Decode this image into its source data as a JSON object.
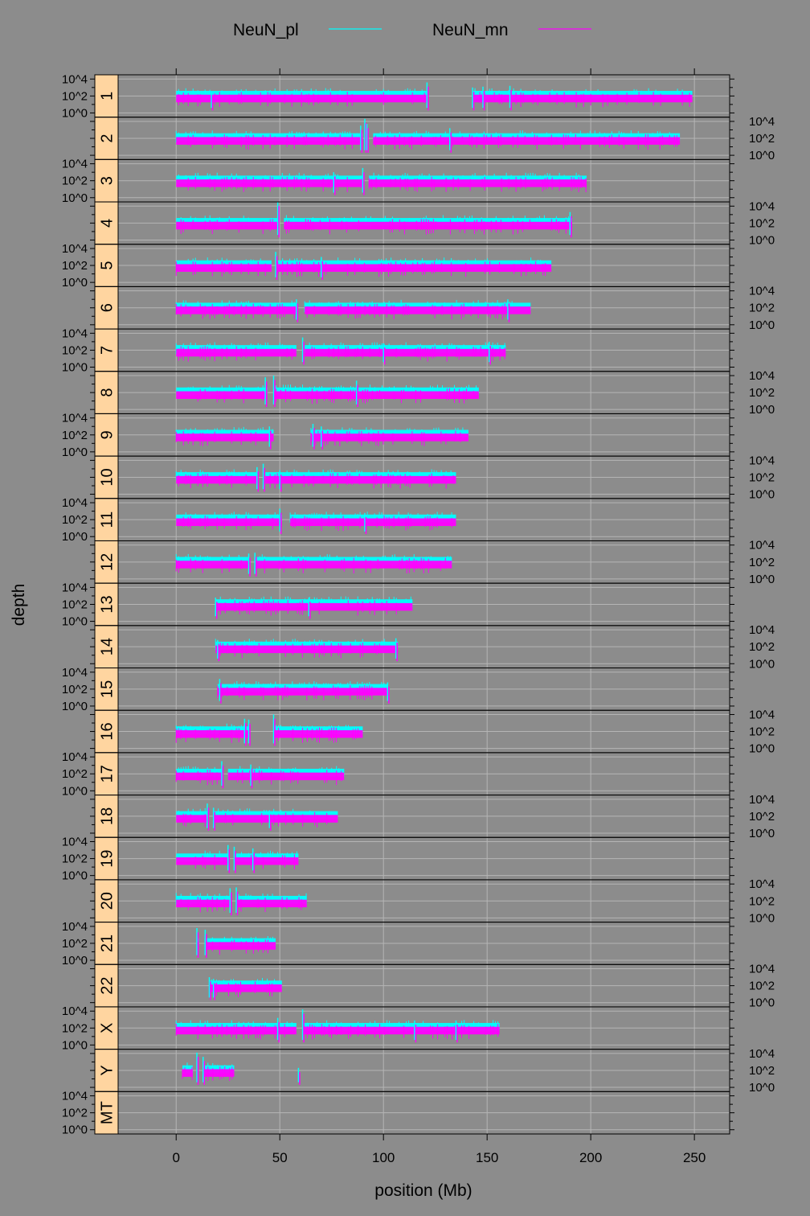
{
  "chart_data": {
    "type": "line",
    "x_label": "position (Mb)",
    "y_label": "depth",
    "x_ticks": [
      0,
      50,
      100,
      150,
      200,
      250
    ],
    "x_range": [
      -28,
      267
    ],
    "y_tick_labels": [
      "10^0",
      "10^2",
      "10^4"
    ],
    "y_ticks_log10": [
      0,
      2,
      4
    ],
    "y_range_log10": [
      -0.5,
      4.5
    ],
    "grid": true,
    "legend_position": "top",
    "series": [
      {
        "name": "NeuN_pl",
        "color": "#00ffff",
        "typical_log10_depth": 2.15
      },
      {
        "name": "NeuN_mn",
        "color": "#ff00ff",
        "typical_log10_depth": 1.7
      }
    ],
    "panels": [
      {
        "chrom": "1",
        "length": 249,
        "segments": [
          [
            0,
            121
          ],
          [
            143,
            249
          ]
        ],
        "spikes": [
          [
            17,
            2.5
          ],
          [
            121,
            3.6
          ],
          [
            143,
            3.0
          ],
          [
            148,
            3.1
          ],
          [
            161,
            3.2
          ]
        ]
      },
      {
        "chrom": "2",
        "length": 243,
        "segments": [
          [
            0,
            90
          ],
          [
            95,
            243
          ]
        ],
        "spikes": [
          [
            89,
            3.5
          ],
          [
            91,
            4.3
          ],
          [
            92,
            3.7
          ],
          [
            132,
            3.2
          ]
        ]
      },
      {
        "chrom": "3",
        "length": 198,
        "segments": [
          [
            0,
            90
          ],
          [
            93,
            198
          ]
        ],
        "spikes": [
          [
            76,
            3.0
          ],
          [
            90,
            3.5
          ]
        ]
      },
      {
        "chrom": "4",
        "length": 191,
        "segments": [
          [
            0,
            49
          ],
          [
            52,
            191
          ]
        ],
        "spikes": [
          [
            49,
            4.5
          ],
          [
            190,
            3.3
          ]
        ]
      },
      {
        "chrom": "5",
        "length": 181,
        "segments": [
          [
            0,
            46
          ],
          [
            49,
            181
          ]
        ],
        "spikes": [
          [
            48,
            3.6
          ],
          [
            70,
            3.0
          ]
        ]
      },
      {
        "chrom": "6",
        "length": 171,
        "segments": [
          [
            0,
            58
          ],
          [
            62,
            171
          ]
        ],
        "spikes": [
          [
            58,
            3.0
          ],
          [
            160,
            3.0
          ]
        ]
      },
      {
        "chrom": "7",
        "length": 159,
        "segments": [
          [
            0,
            58
          ],
          [
            62,
            159
          ]
        ],
        "spikes": [
          [
            61,
            3.5
          ],
          [
            100,
            2.8
          ],
          [
            151,
            3.0
          ]
        ]
      },
      {
        "chrom": "8",
        "length": 146,
        "segments": [
          [
            0,
            44
          ],
          [
            47,
            146
          ]
        ],
        "spikes": [
          [
            43,
            3.8
          ],
          [
            47,
            4.0
          ],
          [
            87,
            3.4
          ]
        ]
      },
      {
        "chrom": "9",
        "length": 141,
        "segments": [
          [
            0,
            47
          ],
          [
            65,
            141
          ]
        ],
        "spikes": [
          [
            45,
            3.0
          ],
          [
            66,
            3.3
          ],
          [
            70,
            3.0
          ]
        ]
      },
      {
        "chrom": "10",
        "length": 135,
        "segments": [
          [
            0,
            39
          ],
          [
            43,
            135
          ]
        ],
        "spikes": [
          [
            39,
            3.2
          ],
          [
            42,
            3.6
          ],
          [
            50,
            2.8
          ]
        ]
      },
      {
        "chrom": "11",
        "length": 135,
        "segments": [
          [
            0,
            51
          ],
          [
            55,
            135
          ]
        ],
        "spikes": [
          [
            50,
            3.3
          ],
          [
            91,
            2.8
          ]
        ]
      },
      {
        "chrom": "12",
        "length": 133,
        "segments": [
          [
            0,
            35
          ],
          [
            38,
            133
          ]
        ],
        "spikes": [
          [
            35,
            3.0
          ],
          [
            38,
            3.1
          ]
        ]
      },
      {
        "chrom": "13",
        "length": 114,
        "segments": [
          [
            19,
            114
          ]
        ],
        "spikes": [
          [
            19,
            2.8
          ],
          [
            64,
            2.8
          ]
        ]
      },
      {
        "chrom": "14",
        "length": 107,
        "segments": [
          [
            19,
            107
          ]
        ],
        "spikes": [
          [
            20,
            2.8
          ],
          [
            106,
            3.0
          ]
        ]
      },
      {
        "chrom": "15",
        "length": 102,
        "segments": [
          [
            20,
            102
          ]
        ],
        "spikes": [
          [
            21,
            3.2
          ],
          [
            102,
            2.8
          ]
        ]
      },
      {
        "chrom": "16",
        "length": 90,
        "segments": [
          [
            0,
            35
          ],
          [
            47,
            90
          ]
        ],
        "spikes": [
          [
            33,
            3.5
          ],
          [
            35,
            3.4
          ],
          [
            47,
            4.0
          ]
        ]
      },
      {
        "chrom": "17",
        "length": 81,
        "segments": [
          [
            0,
            22
          ],
          [
            25,
            81
          ]
        ],
        "spikes": [
          [
            22,
            3.5
          ],
          [
            36,
            3.1
          ]
        ]
      },
      {
        "chrom": "18",
        "length": 78,
        "segments": [
          [
            0,
            15
          ],
          [
            18,
            78
          ]
        ],
        "spikes": [
          [
            15,
            3.5
          ],
          [
            18,
            3.0
          ],
          [
            45,
            2.7
          ]
        ]
      },
      {
        "chrom": "19",
        "length": 59,
        "segments": [
          [
            0,
            25
          ],
          [
            28,
            59
          ]
        ],
        "spikes": [
          [
            25,
            3.6
          ],
          [
            28,
            3.4
          ],
          [
            37,
            3.2
          ]
        ]
      },
      {
        "chrom": "20",
        "length": 63,
        "segments": [
          [
            0,
            26
          ],
          [
            29,
            63
          ]
        ],
        "spikes": [
          [
            26,
            3.5
          ],
          [
            29,
            3.6
          ]
        ]
      },
      {
        "chrom": "21",
        "length": 48,
        "segments": [
          [
            10,
            11
          ],
          [
            14,
            48
          ]
        ],
        "spikes": [
          [
            10,
            3.8
          ],
          [
            14,
            3.6
          ]
        ]
      },
      {
        "chrom": "22",
        "length": 51,
        "segments": [
          [
            16,
            51
          ]
        ],
        "spikes": [
          [
            16,
            3.0
          ],
          [
            18,
            2.8
          ]
        ]
      },
      {
        "chrom": "X",
        "length": 156,
        "segments": [
          [
            0,
            58
          ],
          [
            61,
            156
          ]
        ],
        "spikes": [
          [
            49,
            3.2
          ],
          [
            61,
            4.2
          ],
          [
            115,
            2.9
          ],
          [
            135,
            2.9
          ]
        ]
      },
      {
        "chrom": "Y",
        "length": 57,
        "segments": [
          [
            3,
            8
          ],
          [
            13,
            28
          ]
        ],
        "spikes": [
          [
            10,
            4.1
          ],
          [
            13,
            3.6
          ],
          [
            59,
            2.3
          ]
        ]
      },
      {
        "chrom": "MT",
        "length": 0.017,
        "segments": [],
        "spikes": []
      }
    ]
  }
}
